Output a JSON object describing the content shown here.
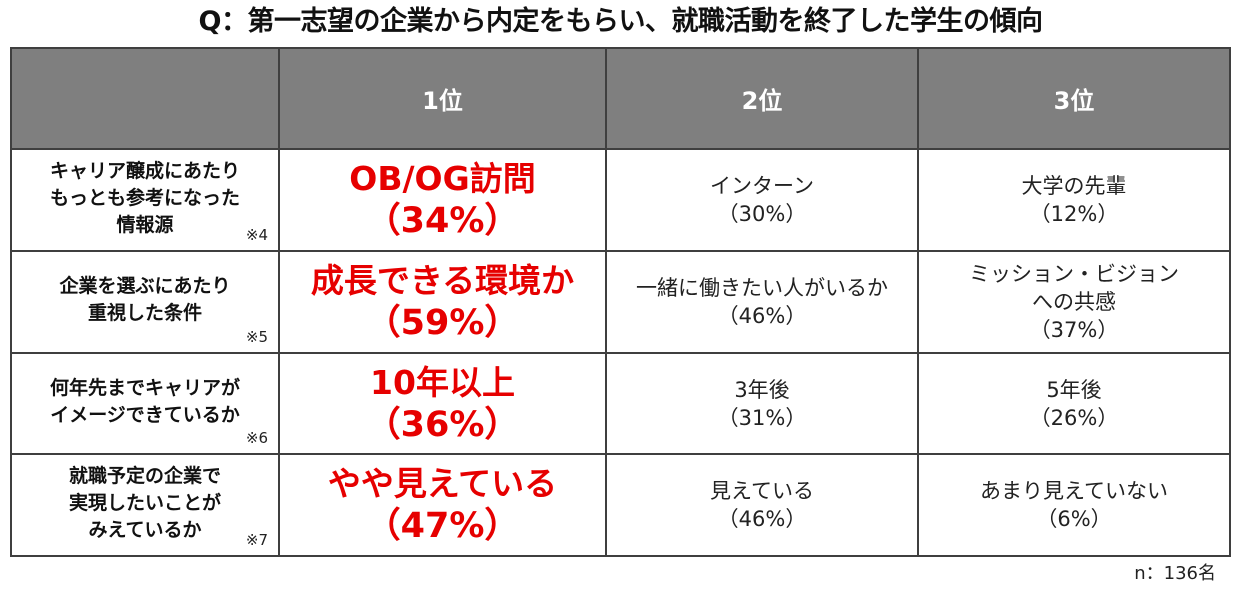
{
  "title": "Q：第一志望の企業から内定をもらい、就職活動を終了した学生の傾向",
  "header": {
    "corner": "",
    "ranks": [
      "1位",
      "2位",
      "3位"
    ]
  },
  "rows": [
    {
      "question": "キャリア醸成にあたり\nもっとも参考になった\n情報源",
      "note": "※4",
      "first": {
        "label": "OB/OG訪問",
        "pct": "（34%）"
      },
      "second": {
        "label": "インターン",
        "pct": "（30%）"
      },
      "third": {
        "label": "大学の先輩",
        "pct": "（12%）"
      }
    },
    {
      "question": "企業を選ぶにあたり\n重視した条件",
      "note": "※5",
      "first": {
        "label": "成長できる環境か",
        "pct": "（59%）"
      },
      "second": {
        "label": "一緒に働きたい人がいるか",
        "pct": "（46%）"
      },
      "third": {
        "label": "ミッション・ビジョン\nへの共感",
        "pct": "（37%）"
      }
    },
    {
      "question": "何年先までキャリアが\nイメージできているか",
      "note": "※6",
      "first": {
        "label": "10年以上",
        "pct": "（36%）"
      },
      "second": {
        "label": "3年後",
        "pct": "（31%）"
      },
      "third": {
        "label": "5年後",
        "pct": "（26%）"
      }
    },
    {
      "question": "就職予定の企業で\n実現したいことが\nみえているか",
      "note": "※7",
      "first": {
        "label": "やや見えている",
        "pct": "（47%）"
      },
      "second": {
        "label": "見えている",
        "pct": "（46%）"
      },
      "third": {
        "label": "あまり見えていない",
        "pct": "（6%）"
      }
    }
  ],
  "footer": "n：136名",
  "colors": {
    "header_bg": "#7f7f7f",
    "highlight": "#e60000",
    "border": "#3f3f3f"
  }
}
